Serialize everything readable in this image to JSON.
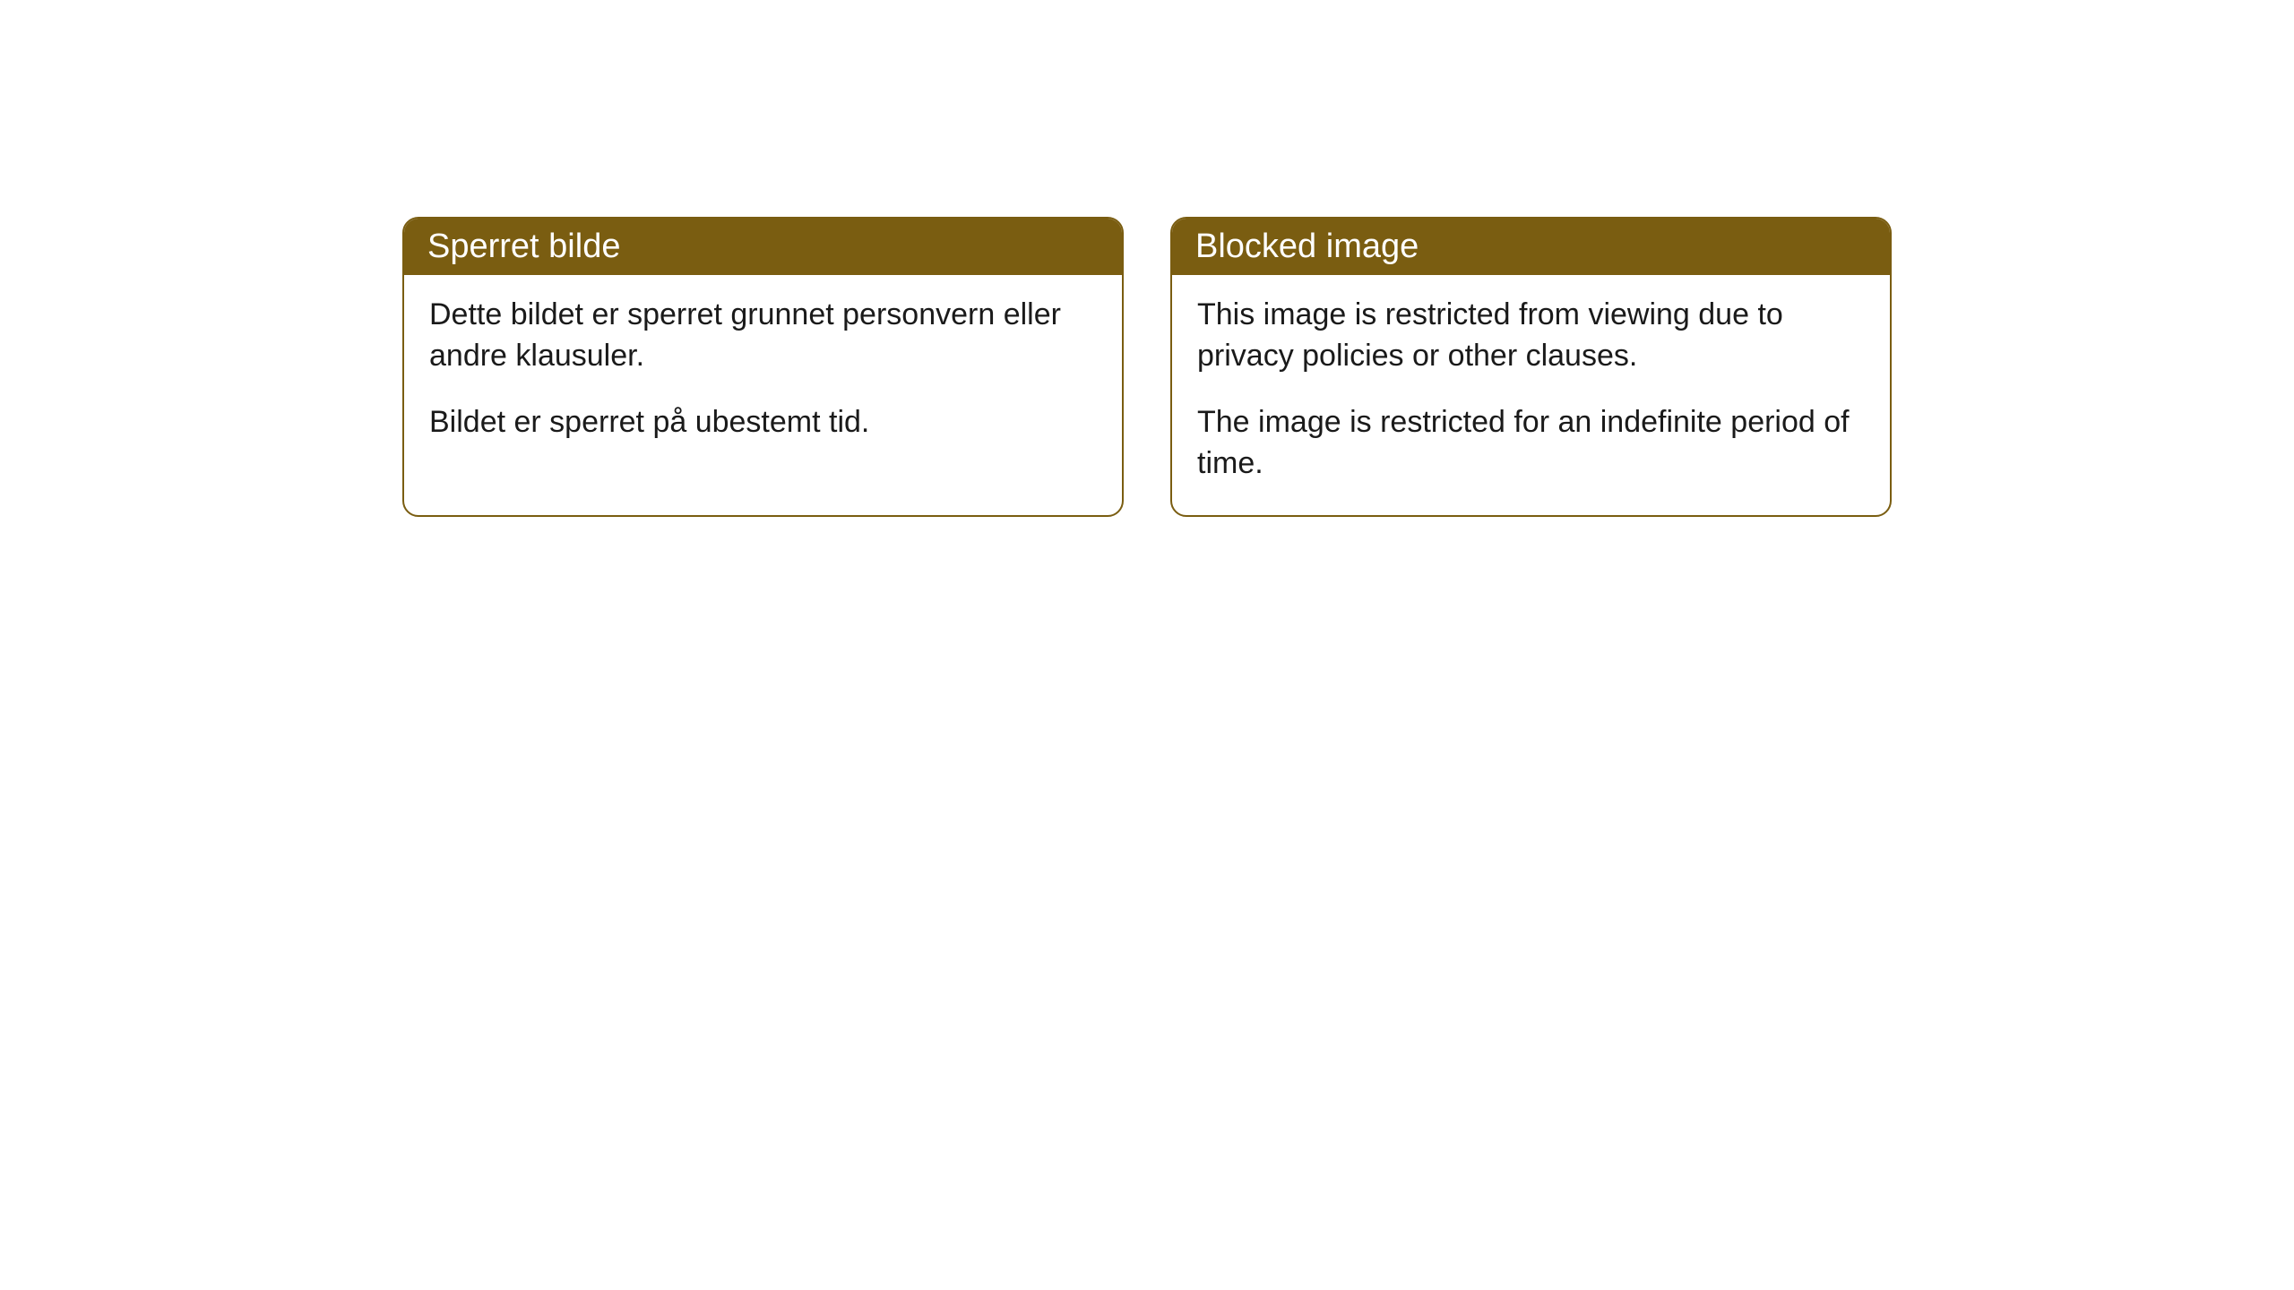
{
  "cards": [
    {
      "title": "Sperret bilde",
      "paragraph1": "Dette bildet er sperret grunnet personvern eller andre klausuler.",
      "paragraph2": "Bildet er sperret på ubestemt tid."
    },
    {
      "title": "Blocked image",
      "paragraph1": "This image is restricted from viewing due to privacy policies or other clauses.",
      "paragraph2": "The image is restricted for an indefinite period of time."
    }
  ],
  "styling": {
    "header_background": "#7a5d11",
    "header_text_color": "#ffffff",
    "body_text_color": "#1a1a1a",
    "border_color": "#7a5d11",
    "card_background": "#ffffff",
    "page_background": "#ffffff",
    "border_radius": 18,
    "header_fontsize": 38,
    "body_fontsize": 34
  }
}
